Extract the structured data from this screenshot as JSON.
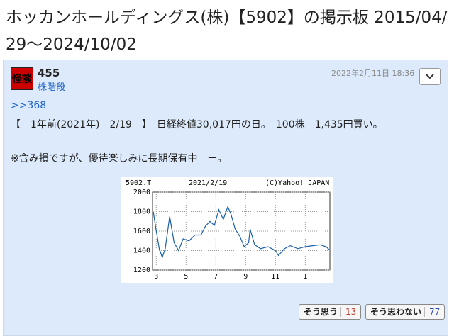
{
  "header": {
    "title": "ホッカンホールディングス(株)【5902】の掲示板 2015/04/29〜2024/10/02"
  },
  "post": {
    "avatar": "怪談",
    "number": "455",
    "user": "株階段",
    "date": "2022年2月11日 18:36",
    "reply_to": ">>368",
    "lines": [
      "【　1年前(2021年)　2/19　】　日経終値30,017円の日。　100株　1,435円買い。",
      "※含み損ですが、優待楽しみに長期保有中　ー。"
    ],
    "chart": {
      "type": "line",
      "ticker": "5902.T",
      "date": "2021/2/19",
      "credit": "(C)Yahoo! JAPAN",
      "color": "#1a5fa8",
      "grid": true,
      "x": [
        2.8,
        2.95,
        3.2,
        3.4,
        3.6,
        3.9,
        4.2,
        4.5,
        4.8,
        5.2,
        5.6,
        6.0,
        6.3,
        6.6,
        6.9,
        7.2,
        7.5,
        7.8,
        8.0,
        8.3,
        8.6,
        8.9,
        9.2,
        9.3,
        9.6,
        10.0,
        10.5,
        11.0,
        11.2,
        11.6,
        12.0,
        12.5,
        13.0,
        13.5,
        14.0,
        14.4,
        14.6
      ],
      "values": [
        1800,
        1650,
        1420,
        1330,
        1420,
        1750,
        1480,
        1400,
        1520,
        1500,
        1560,
        1560,
        1650,
        1700,
        1660,
        1820,
        1720,
        1850,
        1780,
        1620,
        1550,
        1440,
        1480,
        1620,
        1460,
        1420,
        1440,
        1400,
        1350,
        1420,
        1450,
        1420,
        1440,
        1450,
        1460,
        1440,
        1410
      ],
      "xlim": [
        2.75,
        14.65
      ],
      "xticks": [
        3,
        5,
        7,
        9,
        11,
        {
          "value": 13,
          "label": "1"
        }
      ],
      "ylim": [
        1200,
        2000
      ],
      "yticks": [
        1200,
        1400,
        1600,
        1800,
        2000
      ]
    },
    "reactions": [
      {
        "label": "そう思う",
        "count": 13
      },
      {
        "label": "そう思わない",
        "count": 77
      }
    ]
  }
}
